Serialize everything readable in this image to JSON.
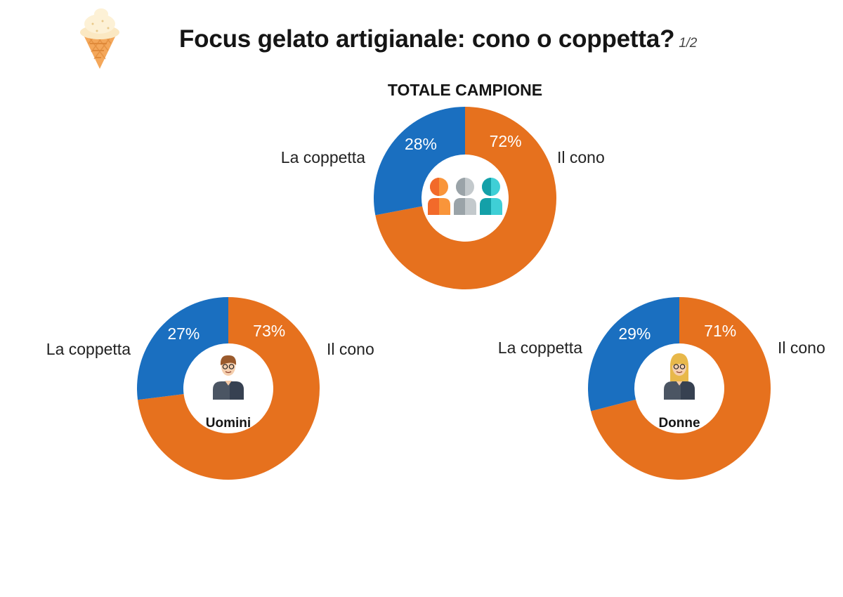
{
  "header": {
    "title": "Focus gelato artigianale: cono o coppetta?",
    "page": "1/2",
    "icon": "ice-cream-cone-icon"
  },
  "colors": {
    "il_cono": "#e6711e",
    "la_coppetta": "#1a6fc0",
    "label_on_slice": "#ffffff"
  },
  "chart_data": [
    {
      "type": "pie",
      "title": "TOTALE CAMPIONE",
      "center_icon": "group-people-icon",
      "center_label": "",
      "slices": [
        {
          "label": "Il cono",
          "value": 72,
          "value_label": "72%",
          "color": "#e6711e"
        },
        {
          "label": "La coppetta",
          "value": 28,
          "value_label": "28%",
          "color": "#1a6fc0"
        }
      ]
    },
    {
      "type": "pie",
      "title": "",
      "center_icon": "man-avatar-icon",
      "center_label": "Uomini",
      "slices": [
        {
          "label": "Il cono",
          "value": 73,
          "value_label": "73%",
          "color": "#e6711e"
        },
        {
          "label": "La coppetta",
          "value": 27,
          "value_label": "27%",
          "color": "#1a6fc0"
        }
      ]
    },
    {
      "type": "pie",
      "title": "",
      "center_icon": "woman-avatar-icon",
      "center_label": "Donne",
      "slices": [
        {
          "label": "Il cono",
          "value": 71,
          "value_label": "71%",
          "color": "#e6711e"
        },
        {
          "label": "La coppetta",
          "value": 29,
          "value_label": "29%",
          "color": "#1a6fc0"
        }
      ]
    }
  ]
}
